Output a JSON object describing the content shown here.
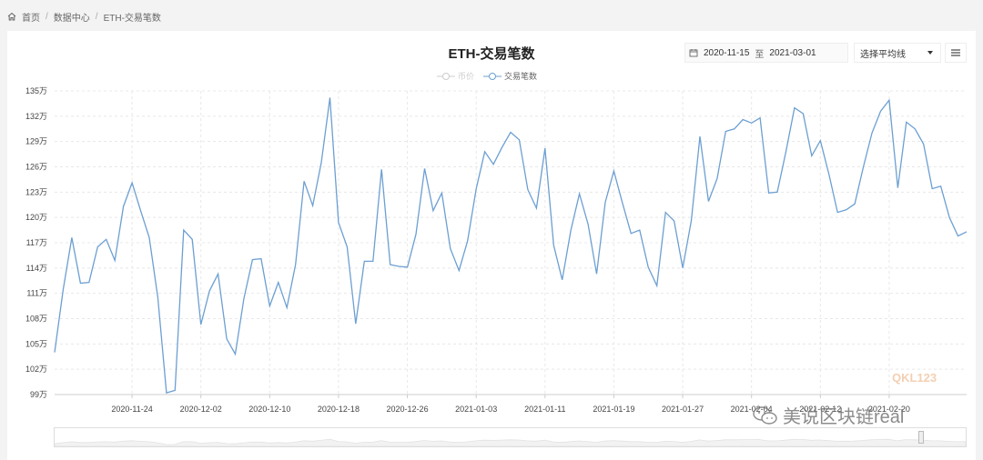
{
  "breadcrumb": {
    "home": "首页",
    "data_center": "数据中心",
    "current": "ETH-交易笔数"
  },
  "toolbar": {
    "start_date": "2020-11-15",
    "to_label": "至",
    "end_date": "2021-03-01",
    "avg_select": "选择平均线"
  },
  "icons": {
    "home": "home-icon",
    "calendar": "calendar-icon",
    "menu": "menu-icon",
    "dropdown": "chevron-down-icon"
  },
  "watermark": {
    "logo": "QKL123",
    "wechat": "美说区块链real"
  },
  "colors": {
    "line": "#6c9fd2",
    "legend_off": "#cccccc"
  },
  "chart_data": {
    "type": "line",
    "title": "ETH-交易笔数",
    "legend": [
      "币价",
      "交易笔数"
    ],
    "legend_inactive": [
      "币价"
    ],
    "y_unit": "万",
    "ylim": [
      99,
      135
    ],
    "y_ticks": [
      99,
      102,
      105,
      108,
      111,
      114,
      117,
      120,
      123,
      126,
      129,
      132,
      135
    ],
    "y_tick_labels": [
      "99万",
      "102万",
      "105万",
      "108万",
      "111万",
      "114万",
      "117万",
      "120万",
      "123万",
      "126万",
      "129万",
      "132万",
      "135万"
    ],
    "x_ticks": [
      "2020-11-24",
      "2020-12-02",
      "2020-12-10",
      "2020-12-18",
      "2020-12-26",
      "2021-01-03",
      "2021-01-11",
      "2021-01-19",
      "2021-01-27",
      "2021-02-04",
      "2021-02-12",
      "2021-02-20"
    ],
    "x_start": "2020-11-15",
    "x_end": "2021-03-01",
    "grid": true,
    "series": [
      {
        "name": "交易笔数",
        "values": [
          104.0,
          111.5,
          117.6,
          112.2,
          112.3,
          116.5,
          117.4,
          114.9,
          121.3,
          124.1,
          120.8,
          117.6,
          110.5,
          99.2,
          99.5,
          118.5,
          117.4,
          107.3,
          111.3,
          113.3,
          105.6,
          103.8,
          110.4,
          115.0,
          115.1,
          109.5,
          112.3,
          109.3,
          114.4,
          124.3,
          121.4,
          126.5,
          134.2,
          119.4,
          116.5,
          107.4,
          114.8,
          114.8,
          125.7,
          114.4,
          114.2,
          114.1,
          118.0,
          125.8,
          120.8,
          122.9,
          116.3,
          113.7,
          117.2,
          123.4,
          127.8,
          126.3,
          128.3,
          130.1,
          129.2,
          123.3,
          121.1,
          128.2,
          116.7,
          112.6,
          118.5,
          122.8,
          119.2,
          113.3,
          121.8,
          125.5,
          121.7,
          118.1,
          118.5,
          114.1,
          111.9,
          120.6,
          119.6,
          114.0,
          119.6,
          129.6,
          121.9,
          124.6,
          130.2,
          130.5,
          131.6,
          131.2,
          131.8,
          122.9,
          123.0,
          127.8,
          133.0,
          132.3,
          127.3,
          129.1,
          125.1,
          120.6,
          120.9,
          121.6,
          126.0,
          130.0,
          132.6,
          133.9,
          123.5,
          131.3,
          130.5,
          128.7,
          123.4,
          123.7,
          120.0,
          117.8,
          118.3
        ]
      }
    ]
  }
}
